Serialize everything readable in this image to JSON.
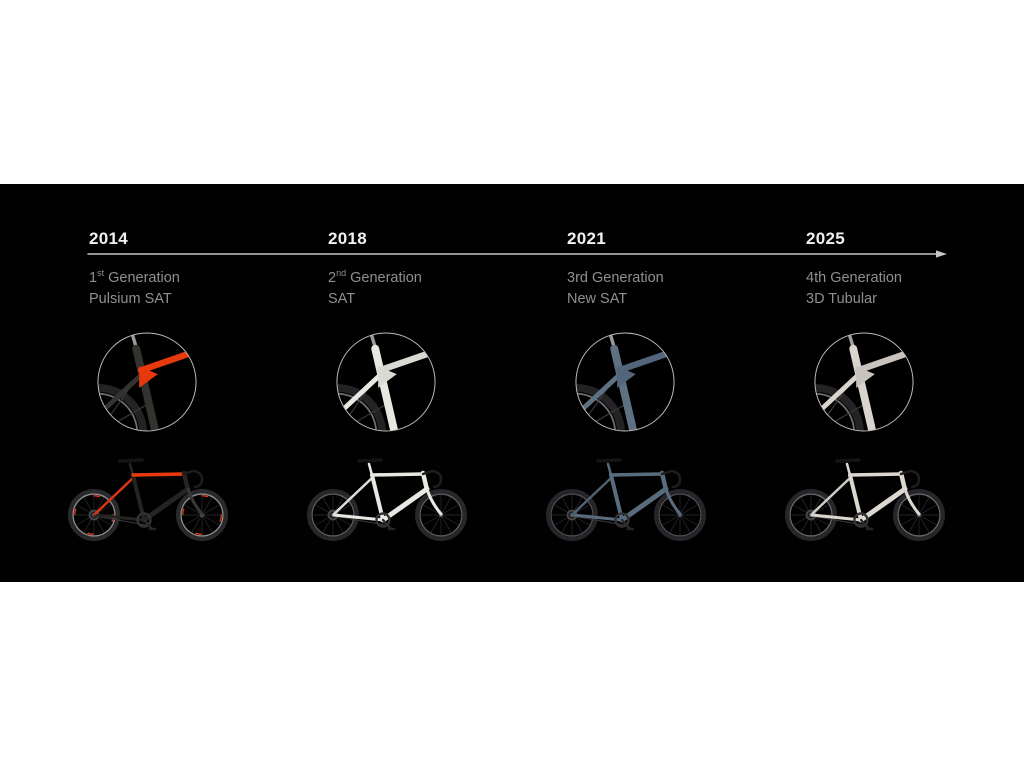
{
  "slide": {
    "page_bg": "#ffffff",
    "band_bg": "#010101",
    "line_color": "#c6c6c6",
    "year_color": "#f1f1f1",
    "subtitle_color": "#8f8f8f",
    "inset_ring_color": "#bcbcbc"
  },
  "timeline": {
    "entries": [
      {
        "year": "2014",
        "gen_pre": "1",
        "gen_sup": "st",
        "gen_post": " Generation",
        "model": "Pulsium SAT",
        "bike": {
          "frame": "#262422",
          "top_tube": "#e8380d",
          "stays": "#d93510",
          "fork": "#3a3734",
          "rim_accent": "#d23414",
          "wheel": "#2a2a2c",
          "rim": "#8c8c8e"
        },
        "inset": {
          "tube": "#34322f",
          "accent": "#e8380d",
          "post": "#9a9a9a"
        }
      },
      {
        "year": "2018",
        "gen_pre": "2",
        "gen_sup": "nd",
        "gen_post": " Generation",
        "model": "SAT",
        "bike": {
          "frame": "#eae8e3",
          "top_tube": "#eae8e3",
          "stays": "#dedcd7",
          "fork": "#eae8e3",
          "rim_accent": "",
          "wheel": "#27272a",
          "rim": "#5c5c60"
        },
        "inset": {
          "tube": "#e9e7e2",
          "accent": "#dbd9d4",
          "post": "#9a9a9a"
        }
      },
      {
        "year": "2021",
        "gen_pre": "3rd",
        "gen_sup": "",
        "gen_post": " Generation",
        "model": "New SAT",
        "bike": {
          "frame": "#596c7e",
          "top_tube": "#596c7e",
          "stays": "#4e6173",
          "fork": "#596c7e",
          "rim_accent": "",
          "wheel": "#25252a",
          "rim": "#4c4c52"
        },
        "inset": {
          "tube": "#5d7183",
          "accent": "#52657a",
          "post": "#9a9a9a"
        }
      },
      {
        "year": "2025",
        "gen_pre": "4th",
        "gen_sup": "",
        "gen_post": " Generation",
        "model": "3D Tubular",
        "bike": {
          "frame": "#dcd8d1",
          "top_tube": "#dcd8d1",
          "stays": "#cfcbc4",
          "fork": "#dcd8d1",
          "rim_accent": "",
          "wheel": "#27272a",
          "rim": "#66666c"
        },
        "inset": {
          "tube": "#d9d5ce",
          "accent": "#c8c4bd",
          "post": "#9e9e9e"
        }
      }
    ]
  }
}
